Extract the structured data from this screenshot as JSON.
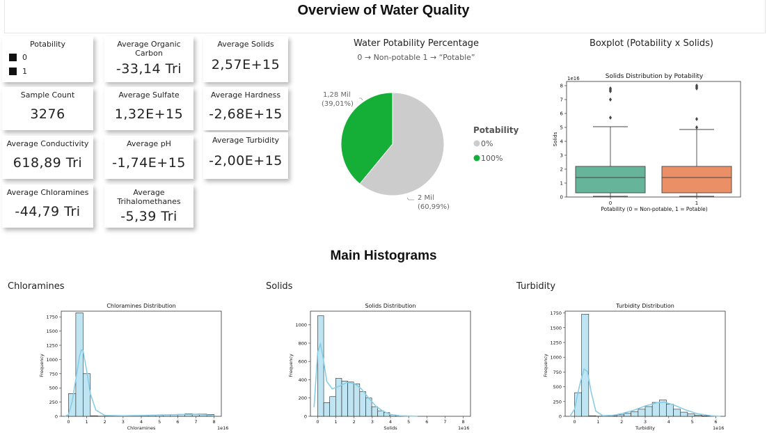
{
  "header": {
    "title": "Overview of Water Quality"
  },
  "cards": {
    "potability": {
      "label": "Potability",
      "legend": [
        "0",
        "1"
      ]
    },
    "organic_carbon": {
      "label": "Average Organic Carbon",
      "value": "-33,14 Tri"
    },
    "solids": {
      "label": "Average Solids",
      "value": "2,57E+15"
    },
    "sample_count": {
      "label": "Sample Count",
      "value": "3276"
    },
    "sulfate": {
      "label": "Average Sulfate",
      "value": "1,32E+15"
    },
    "hardness": {
      "label": "Average Hardness",
      "value": "-2,68E+15"
    },
    "conductivity": {
      "label": "Average Conductivity",
      "value": "618,89 Tri"
    },
    "ph": {
      "label": "Average pH",
      "value": "-1,74E+15"
    },
    "turbidity": {
      "label": "Average Turbidity",
      "value": "-2,00E+15"
    },
    "chloramines": {
      "label": "Average Chloramines",
      "value": "-44,79 Tri"
    },
    "trihalomethanes": {
      "label": "Average Trihalomethanes",
      "value": "-5,39 Tri"
    }
  },
  "pie": {
    "title": "Water Potability Percentage",
    "subtitle": "0 →  Non-potable 1 → “Potable”",
    "label_green_1": "1,28 Mil",
    "label_green_2": "(39,01%)",
    "label_gray_1": "2 Mil",
    "label_gray_2": "(60,99%)",
    "legend_title": "Potability",
    "legend_items": [
      {
        "label": "0%",
        "color": "#cccccc"
      },
      {
        "label": "100%",
        "color": "#15ae37"
      }
    ]
  },
  "boxplot": {
    "visual_title": "Boxplot (Potability x Solids)",
    "inner_title": "Solids Distribution by Potability",
    "xlabel": "Potability (0 = Non-potable, 1 = Potable)",
    "ylabel": "Solids",
    "exponent": "1e16"
  },
  "histograms": {
    "section_title": "Main Histograms",
    "chloramines": {
      "visual_title": "Chloramines",
      "title": "Chloramines Distribution",
      "xlabel": "Chloramines",
      "ylabel": "Frequency",
      "exponent": "1e16"
    },
    "solids": {
      "visual_title": "Solids",
      "title": "Solids Distribution",
      "xlabel": "Solids",
      "ylabel": "Frequency",
      "exponent": "1e16"
    },
    "turbidity": {
      "visual_title": "Turbidity",
      "title": "Turbidity Distribution",
      "xlabel": "Turbidity",
      "ylabel": "Frequency",
      "exponent": "1e16"
    }
  },
  "colors": {
    "pie_green": "#15ae37",
    "pie_gray": "#cccccc",
    "box_green": "#66b49a",
    "box_orange": "#ea8f66",
    "hist_fill": "#bfe4f2",
    "kde": "#87cde8"
  },
  "chart_data": [
    {
      "type": "pie",
      "title": "Water Potability Percentage",
      "categories": [
        "0",
        "1"
      ],
      "values": [
        1998,
        1278
      ],
      "value_labels": [
        "2 Mil",
        "1,28 Mil"
      ],
      "percent_labels": [
        "60,99%",
        "39,01%"
      ]
    },
    {
      "type": "box",
      "title": "Solids Distribution by Potability",
      "categories": [
        "0",
        "1"
      ],
      "xlabel": "Potability (0 = Non-potable, 1 = Potable)",
      "ylabel": "Solids",
      "ylim": [
        0,
        8.3
      ],
      "yticks": [
        0,
        1,
        2,
        3,
        4,
        5,
        6,
        7,
        8
      ],
      "series": [
        {
          "whisker_low": 0.05,
          "q1": 0.3,
          "median": 1.4,
          "q3": 2.2,
          "whisker_high": 5.05,
          "outliers": [
            5.7,
            7.0,
            7.6,
            7.7,
            7.8
          ]
        },
        {
          "whisker_low": 0.05,
          "q1": 0.3,
          "median": 1.4,
          "q3": 2.2,
          "whisker_high": 4.85,
          "outliers": [
            5.0,
            5.6,
            7.8,
            7.9,
            8.0
          ]
        }
      ]
    },
    {
      "type": "bar",
      "title": "Chloramines Distribution",
      "xlabel": "Chloramines",
      "ylabel": "Frequency",
      "xlim": [
        -0.4,
        8.4
      ],
      "ylim": [
        0,
        1850
      ],
      "xticks": [
        0,
        1,
        2,
        3,
        4,
        5,
        6,
        7,
        8
      ],
      "yticks": [
        0,
        250,
        500,
        750,
        1000,
        1250,
        1500,
        1750
      ],
      "bin_width": 0.4,
      "bin_start": [
        0,
        0.4,
        0.8,
        1.2,
        1.6,
        2.0,
        2.4,
        2.8,
        3.2,
        3.6,
        4.0,
        4.4,
        4.8,
        5.2,
        5.6,
        6.0,
        6.4,
        6.8,
        7.2,
        7.6
      ],
      "values": [
        400,
        1820,
        750,
        10,
        3,
        3,
        5,
        8,
        8,
        10,
        12,
        15,
        18,
        22,
        28,
        35,
        45,
        40,
        38,
        32
      ],
      "kde_x": [
        -0.2,
        0,
        0.2,
        0.4,
        0.6,
        0.7,
        0.8,
        1.0,
        1.2,
        1.5,
        2.0,
        3,
        4,
        5,
        6,
        6.5,
        7,
        7.5,
        8
      ],
      "kde_y": [
        0,
        30,
        260,
        650,
        1050,
        1170,
        1150,
        800,
        400,
        110,
        15,
        10,
        15,
        22,
        30,
        35,
        33,
        25,
        10
      ]
    },
    {
      "type": "bar",
      "title": "Solids Distribution",
      "xlabel": "Solids",
      "ylabel": "Frequency",
      "xlim": [
        -0.4,
        8.4
      ],
      "ylim": [
        0,
        1150
      ],
      "xticks": [
        0,
        1,
        2,
        3,
        4,
        5,
        6,
        7,
        8
      ],
      "yticks": [
        0,
        200,
        400,
        600,
        800,
        1000
      ],
      "bin_width": 0.33,
      "bin_start": [
        0,
        0.33,
        0.66,
        0.99,
        1.32,
        1.65,
        1.98,
        2.31,
        2.64,
        2.97,
        3.3,
        3.63,
        3.96,
        4.29,
        4.62,
        4.95
      ],
      "values": [
        1100,
        150,
        215,
        415,
        385,
        375,
        355,
        270,
        200,
        105,
        60,
        40,
        15,
        8,
        3,
        2
      ],
      "kde_x": [
        -0.2,
        0,
        0.15,
        0.3,
        0.5,
        0.8,
        1.2,
        1.6,
        2.0,
        2.4,
        2.8,
        3.2,
        3.6,
        4.0,
        4.5,
        5.5
      ],
      "kde_y": [
        100,
        700,
        790,
        640,
        380,
        300,
        330,
        370,
        360,
        300,
        200,
        110,
        55,
        20,
        6,
        0
      ]
    },
    {
      "type": "bar",
      "title": "Turbidity Distribution",
      "xlabel": "Turbidity",
      "ylabel": "Frequency",
      "xlim": [
        -0.4,
        6.4
      ],
      "ylim": [
        0,
        1780
      ],
      "xticks": [
        0,
        1,
        2,
        3,
        4,
        5,
        6
      ],
      "yticks": [
        0,
        250,
        500,
        750,
        1000,
        1250,
        1500,
        1750
      ],
      "bin_width": 0.3,
      "bin_start": [
        0,
        0.3,
        0.6,
        0.9,
        1.2,
        1.5,
        1.8,
        2.1,
        2.4,
        2.7,
        3.0,
        3.3,
        3.6,
        3.9,
        4.2,
        4.5,
        4.8,
        5.1,
        5.4,
        5.7
      ],
      "values": [
        400,
        1730,
        10,
        3,
        5,
        10,
        25,
        50,
        80,
        120,
        165,
        235,
        275,
        205,
        120,
        70,
        40,
        20,
        8,
        3
      ],
      "kde_x": [
        -0.2,
        0,
        0.2,
        0.4,
        0.55,
        0.7,
        0.9,
        1.2,
        1.6,
        2.0,
        2.5,
        3.0,
        3.5,
        3.8,
        4.2,
        4.7,
        5.2,
        5.8,
        6.2
      ],
      "kde_y": [
        0,
        120,
        500,
        800,
        760,
        420,
        90,
        10,
        15,
        45,
        100,
        175,
        230,
        240,
        195,
        110,
        45,
        10,
        0
      ]
    }
  ]
}
